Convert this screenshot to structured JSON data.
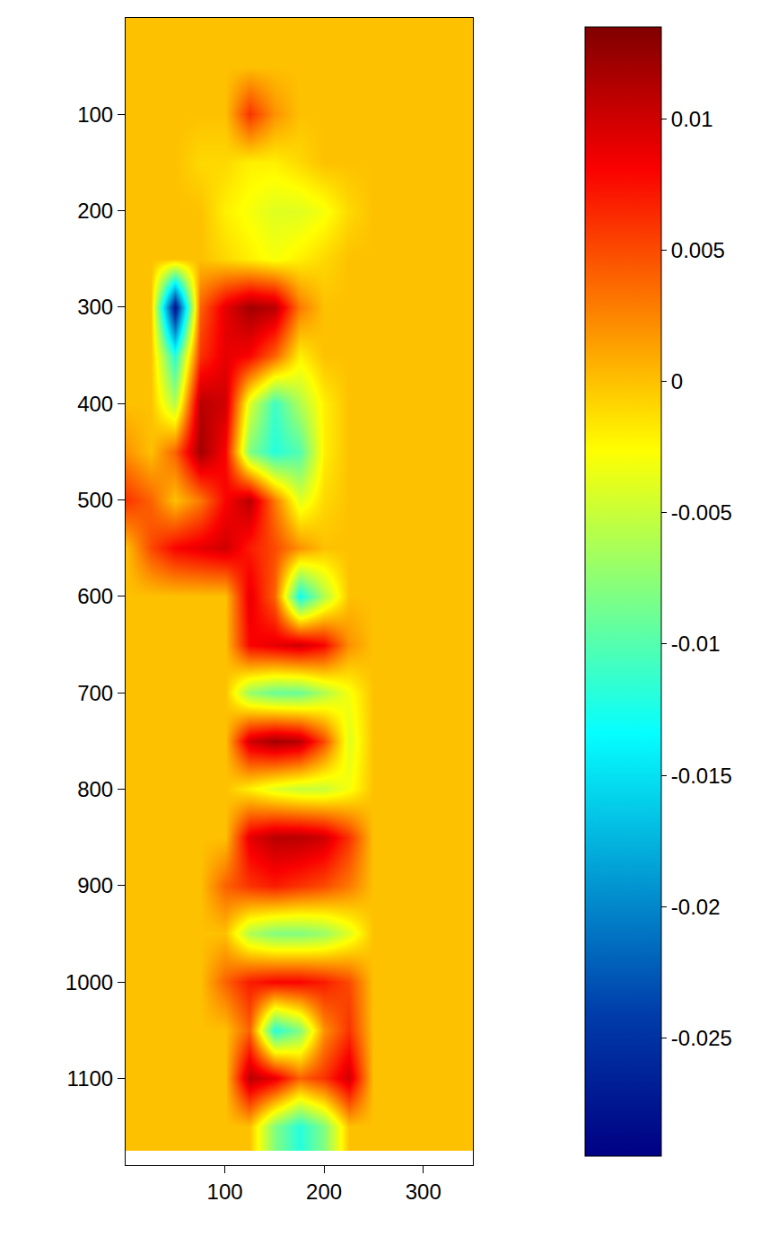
{
  "chart_data": {
    "type": "heatmap",
    "color": "Jet",
    "grid": false,
    "x": [
      0,
      25,
      50,
      75,
      100,
      125,
      150,
      175,
      200,
      225,
      250,
      275,
      300,
      325,
      350
    ],
    "y": [
      0,
      50,
      100,
      150,
      200,
      250,
      300,
      350,
      400,
      450,
      500,
      550,
      600,
      650,
      700,
      750,
      800,
      850,
      900,
      950,
      1000,
      1050,
      1100,
      1150
    ],
    "z": [
      [
        0,
        0,
        0,
        0,
        0,
        0,
        0,
        0,
        0,
        0,
        0,
        0,
        0,
        0,
        0
      ],
      [
        0,
        0,
        0,
        0,
        0,
        0,
        0,
        0,
        0,
        0,
        0,
        0,
        0,
        0,
        0
      ],
      [
        0,
        0,
        0,
        0,
        0,
        0.006,
        0.002,
        0,
        0,
        0,
        0,
        0,
        0,
        0,
        0
      ],
      [
        0,
        0,
        0,
        -0.001,
        -0.001,
        -0.002,
        -0.002,
        -0.001,
        0,
        0,
        0,
        0,
        0,
        0,
        0
      ],
      [
        0,
        0,
        0,
        0,
        -0.002,
        -0.003,
        -0.004,
        -0.004,
        -0.003,
        -0.001,
        0,
        0,
        0,
        0,
        0
      ],
      [
        0,
        0,
        0,
        0,
        -0.001,
        -0.002,
        -0.003,
        -0.002,
        -0.001,
        0,
        0,
        0,
        0,
        0,
        0
      ],
      [
        0,
        0,
        -0.028,
        0.004,
        0.009,
        0.012,
        0.011,
        0.003,
        0,
        0,
        0,
        0,
        0,
        0,
        0
      ],
      [
        0,
        0,
        -0.012,
        0.006,
        0.009,
        0.008,
        0.004,
        -0.002,
        0,
        0,
        0,
        0,
        0,
        0,
        0
      ],
      [
        0,
        0,
        -0.006,
        0.011,
        0.01,
        -0.004,
        -0.011,
        -0.006,
        -0.002,
        0,
        0,
        0,
        0,
        0,
        0
      ],
      [
        0.002,
        0,
        0.004,
        0.012,
        0.008,
        -0.008,
        -0.012,
        -0.01,
        -0.002,
        0,
        0,
        0,
        0,
        0,
        0
      ],
      [
        0.006,
        0.004,
        0,
        0.003,
        0.008,
        0.011,
        0.003,
        -0.004,
        -0.001,
        0,
        0,
        0,
        0,
        0,
        0
      ],
      [
        0,
        0.005,
        0.008,
        0.009,
        0.01,
        0.007,
        0.005,
        0.002,
        0,
        0,
        0,
        0,
        0,
        0,
        0
      ],
      [
        0,
        0,
        0,
        0,
        0,
        0.009,
        0.004,
        -0.013,
        -0.006,
        0,
        0,
        0,
        0,
        0,
        0
      ],
      [
        0,
        0,
        0,
        0,
        0,
        0.008,
        0.009,
        0.01,
        0.008,
        0.002,
        0,
        0,
        0,
        0,
        0
      ],
      [
        0,
        0,
        0,
        0,
        0,
        -0.007,
        -0.009,
        -0.009,
        -0.006,
        -0.003,
        0,
        0,
        0,
        0,
        0
      ],
      [
        0,
        0,
        0,
        0,
        0,
        0.01,
        0.012,
        0.011,
        0.005,
        -0.004,
        0,
        0,
        0,
        0,
        0
      ],
      [
        0,
        0,
        0,
        0,
        0,
        -0.002,
        -0.004,
        -0.005,
        -0.005,
        -0.003,
        0,
        0,
        0,
        0,
        0
      ],
      [
        0,
        0,
        0,
        0,
        0,
        0.009,
        0.011,
        0.011,
        0.01,
        0.006,
        0,
        0,
        0,
        0,
        0
      ],
      [
        0,
        0,
        0,
        0,
        0.004,
        0.006,
        0.007,
        0.006,
        0.005,
        0.003,
        0,
        0,
        0,
        0,
        0
      ],
      [
        0,
        0,
        0,
        0,
        0,
        -0.006,
        -0.008,
        -0.008,
        -0.007,
        -0.004,
        0,
        0,
        0,
        0,
        0
      ],
      [
        0,
        0,
        0,
        0,
        0.004,
        0.007,
        0.008,
        0.008,
        0.007,
        0.005,
        0,
        0,
        0,
        0,
        0
      ],
      [
        0,
        0,
        0,
        0,
        0,
        0.004,
        -0.012,
        -0.008,
        0.002,
        0.006,
        0,
        0,
        0,
        0,
        0
      ],
      [
        0,
        0,
        0,
        0,
        0,
        0.011,
        0.009,
        0.004,
        0.006,
        0.01,
        0,
        0,
        0,
        0,
        0
      ],
      [
        0,
        0,
        0,
        0,
        0,
        0,
        -0.008,
        -0.012,
        -0.008,
        0,
        0,
        0,
        0,
        0,
        0
      ]
    ],
    "xlim": [
      0,
      350
    ],
    "xticks": [
      100,
      200,
      300
    ],
    "ylim": [
      1190,
      0
    ],
    "yticks": [
      100,
      200,
      300,
      400,
      500,
      600,
      700,
      800,
      900,
      1000,
      1100
    ],
    "zlim": [
      -0.0295,
      0.0135
    ],
    "zticks": [
      -0.025,
      -0.02,
      -0.015,
      -0.01,
      -0.005,
      0,
      0.005,
      0.01
    ]
  }
}
